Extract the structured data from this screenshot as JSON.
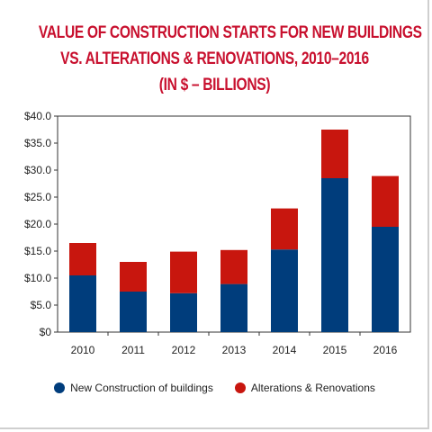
{
  "chart_data": {
    "type": "bar",
    "stacked": true,
    "title_lines": [
      "VALUE OF CONSTRUCTION STARTS FOR NEW BUILDINGS",
      "VS. ALTERATIONS & RENOVATIONS, 2010–2016",
      "(IN $ – BILLIONS)"
    ],
    "categories": [
      "2010",
      "2011",
      "2012",
      "2013",
      "2014",
      "2015",
      "2016"
    ],
    "series": [
      {
        "name": "New Construction of buildings",
        "color": "#003d7c",
        "values": [
          10.5,
          7.5,
          7.2,
          8.9,
          15.3,
          28.5,
          19.5
        ]
      },
      {
        "name": "Alterations & Renovations",
        "color": "#c8160e",
        "values": [
          6.0,
          5.5,
          7.7,
          6.3,
          7.6,
          9.0,
          9.4
        ]
      }
    ],
    "ylim": [
      0,
      40
    ],
    "yticks": [
      0,
      5,
      10,
      15,
      20,
      25,
      30,
      35,
      40
    ],
    "ytick_labels": [
      "$0",
      "$5.0",
      "$10.0",
      "$15.0",
      "$20.0",
      "$25.0",
      "$30.0",
      "$35.0",
      "$40.0"
    ],
    "grid": false,
    "legend_position": "bottom"
  }
}
